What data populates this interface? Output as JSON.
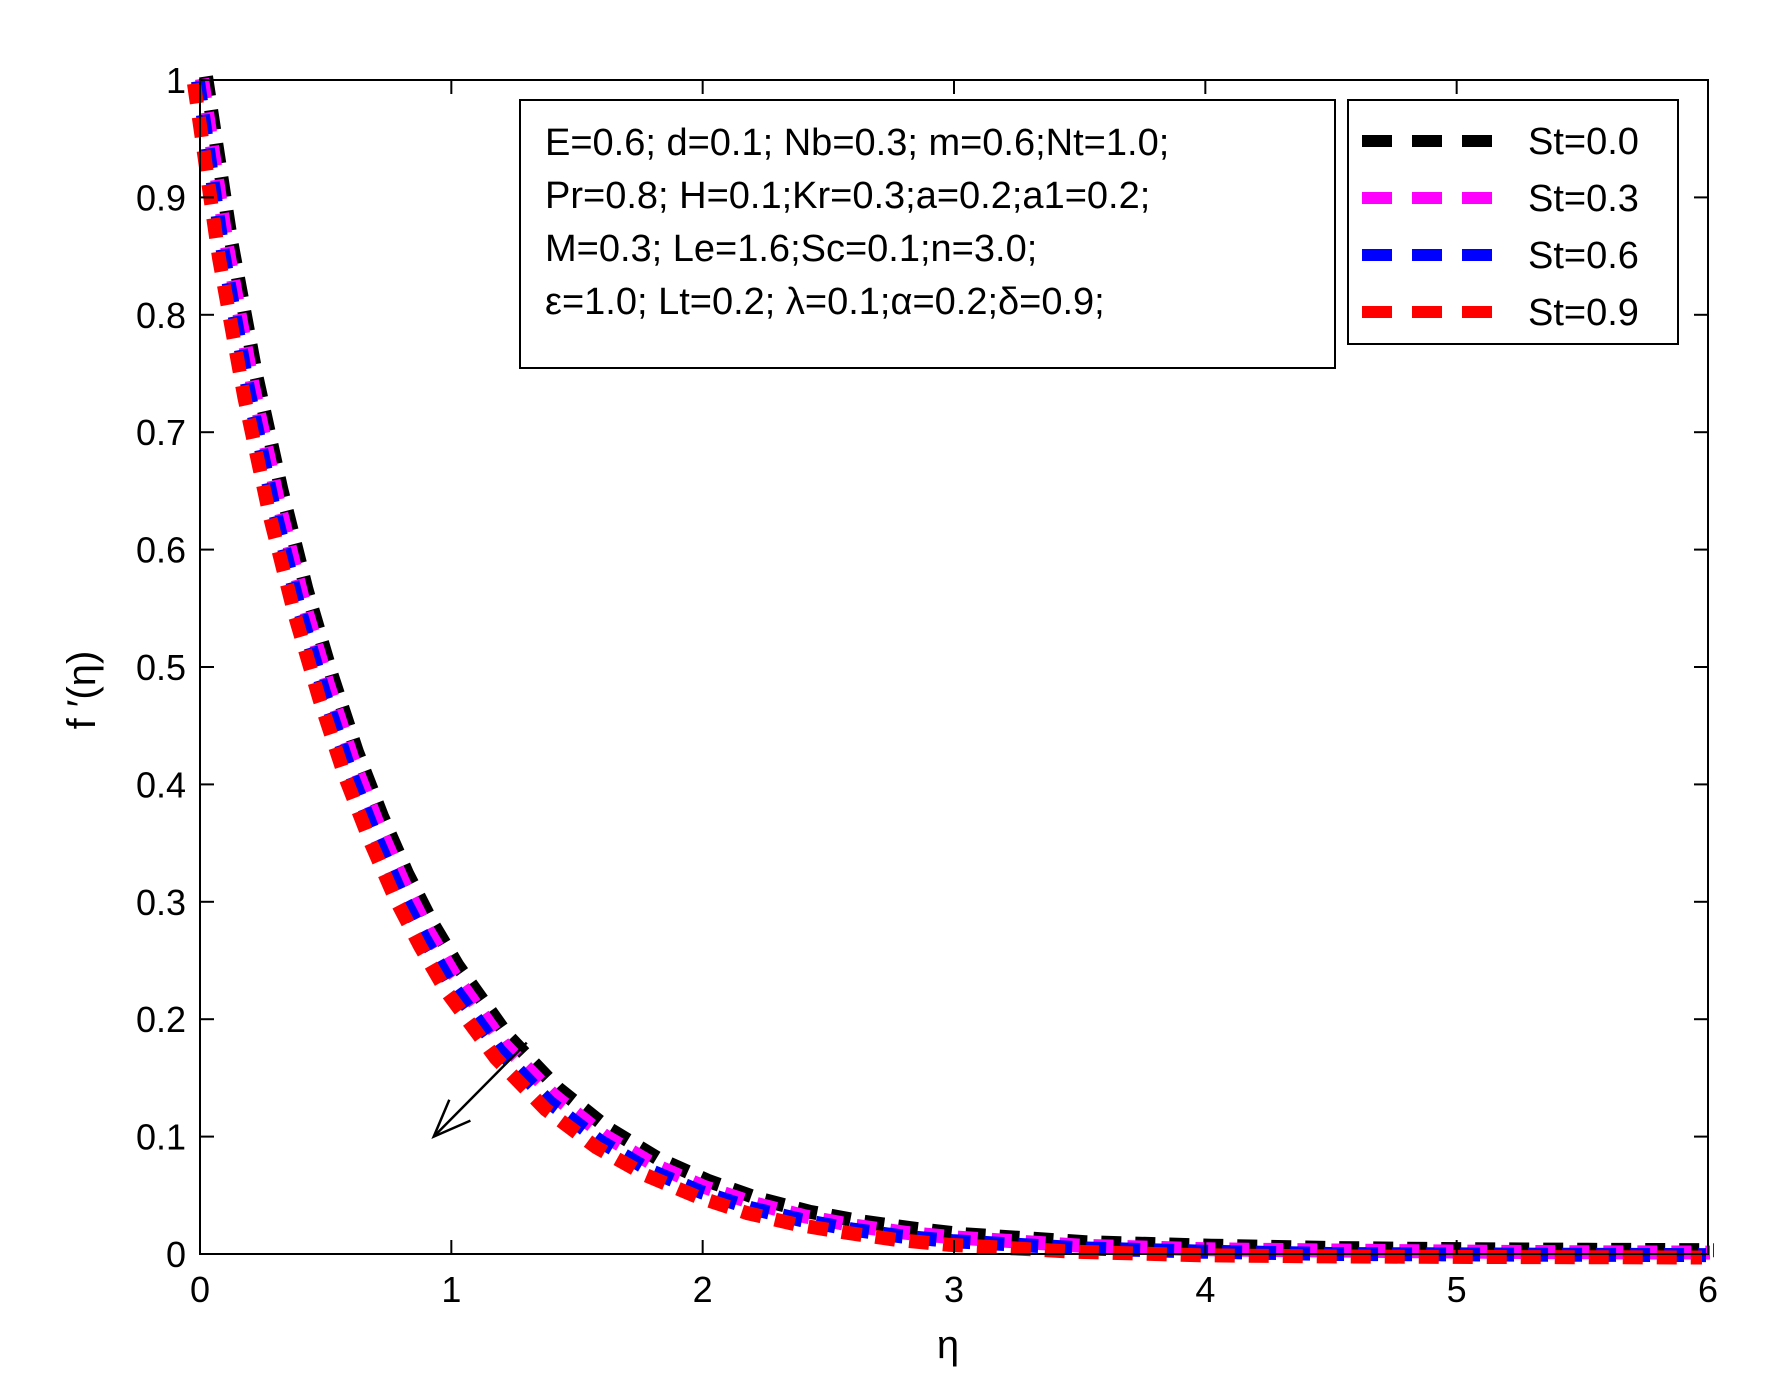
{
  "chart_data": {
    "type": "line",
    "title": "",
    "xlabel": "η",
    "ylabel": "f ′(η)",
    "xlim": [
      0,
      6
    ],
    "ylim": [
      0,
      1
    ],
    "xticks": [
      "0",
      "1",
      "2",
      "3",
      "4",
      "5",
      "6"
    ],
    "yticks": [
      "0",
      "0.1",
      "0.2",
      "0.3",
      "0.4",
      "0.5",
      "0.6",
      "0.7",
      "0.8",
      "0.9",
      "1"
    ],
    "grid": false,
    "legend_position": "top-right",
    "line_style": "dashed",
    "x": [
      0,
      0.1,
      0.2,
      0.3,
      0.4,
      0.5,
      0.6,
      0.7,
      0.8,
      0.9,
      1.0,
      1.2,
      1.4,
      1.6,
      1.8,
      2.0,
      2.2,
      2.4,
      2.6,
      2.8,
      3.0,
      3.5,
      4.0,
      4.5,
      5.0,
      5.5,
      6.0
    ],
    "series": [
      {
        "name": "St=0.0",
        "color": "#000000",
        "values": [
          1.0,
          0.86,
          0.745,
          0.648,
          0.563,
          0.49,
          0.425,
          0.37,
          0.321,
          0.279,
          0.243,
          0.183,
          0.138,
          0.104,
          0.078,
          0.059,
          0.044,
          0.033,
          0.025,
          0.019,
          0.014,
          0.007,
          0.004,
          0.002,
          0.001,
          0.0005,
          0.0002
        ]
      },
      {
        "name": "St=0.3",
        "color": "#ff00ff",
        "values": [
          1.0,
          0.857,
          0.741,
          0.643,
          0.558,
          0.485,
          0.42,
          0.365,
          0.316,
          0.274,
          0.238,
          0.178,
          0.134,
          0.1,
          0.075,
          0.056,
          0.042,
          0.031,
          0.023,
          0.017,
          0.013,
          0.006,
          0.003,
          0.002,
          0.001,
          0.0004,
          0.0002
        ]
      },
      {
        "name": "St=0.6",
        "color": "#0000ff",
        "values": [
          1.0,
          0.854,
          0.737,
          0.638,
          0.553,
          0.48,
          0.415,
          0.36,
          0.311,
          0.27,
          0.233,
          0.174,
          0.13,
          0.097,
          0.072,
          0.054,
          0.04,
          0.03,
          0.022,
          0.016,
          0.012,
          0.006,
          0.003,
          0.001,
          0.0007,
          0.0003,
          0.0001
        ]
      },
      {
        "name": "St=0.9",
        "color": "#ff0000",
        "values": [
          1.0,
          0.851,
          0.733,
          0.633,
          0.548,
          0.475,
          0.41,
          0.355,
          0.306,
          0.265,
          0.228,
          0.17,
          0.126,
          0.094,
          0.07,
          0.052,
          0.038,
          0.028,
          0.021,
          0.015,
          0.011,
          0.005,
          0.002,
          0.001,
          0.0006,
          0.0003,
          0.0001
        ]
      }
    ],
    "parameters_box": [
      "E=0.6; d=0.1; Nb=0.3; m=0.6;Nt=1.0;",
      "Pr=0.8; H=0.1;Kr=0.3;a=0.2;a1=0.2;",
      "M=0.3; Le=1.6;Sc=0.1;n=3.0;",
      "ε=1.0; Lt=0.2; λ=0.1;α=0.2;δ=0.9;"
    ],
    "annotation": {
      "type": "arrow",
      "from": [
        1.3,
        0.18
      ],
      "to": [
        0.93,
        0.1
      ]
    }
  }
}
